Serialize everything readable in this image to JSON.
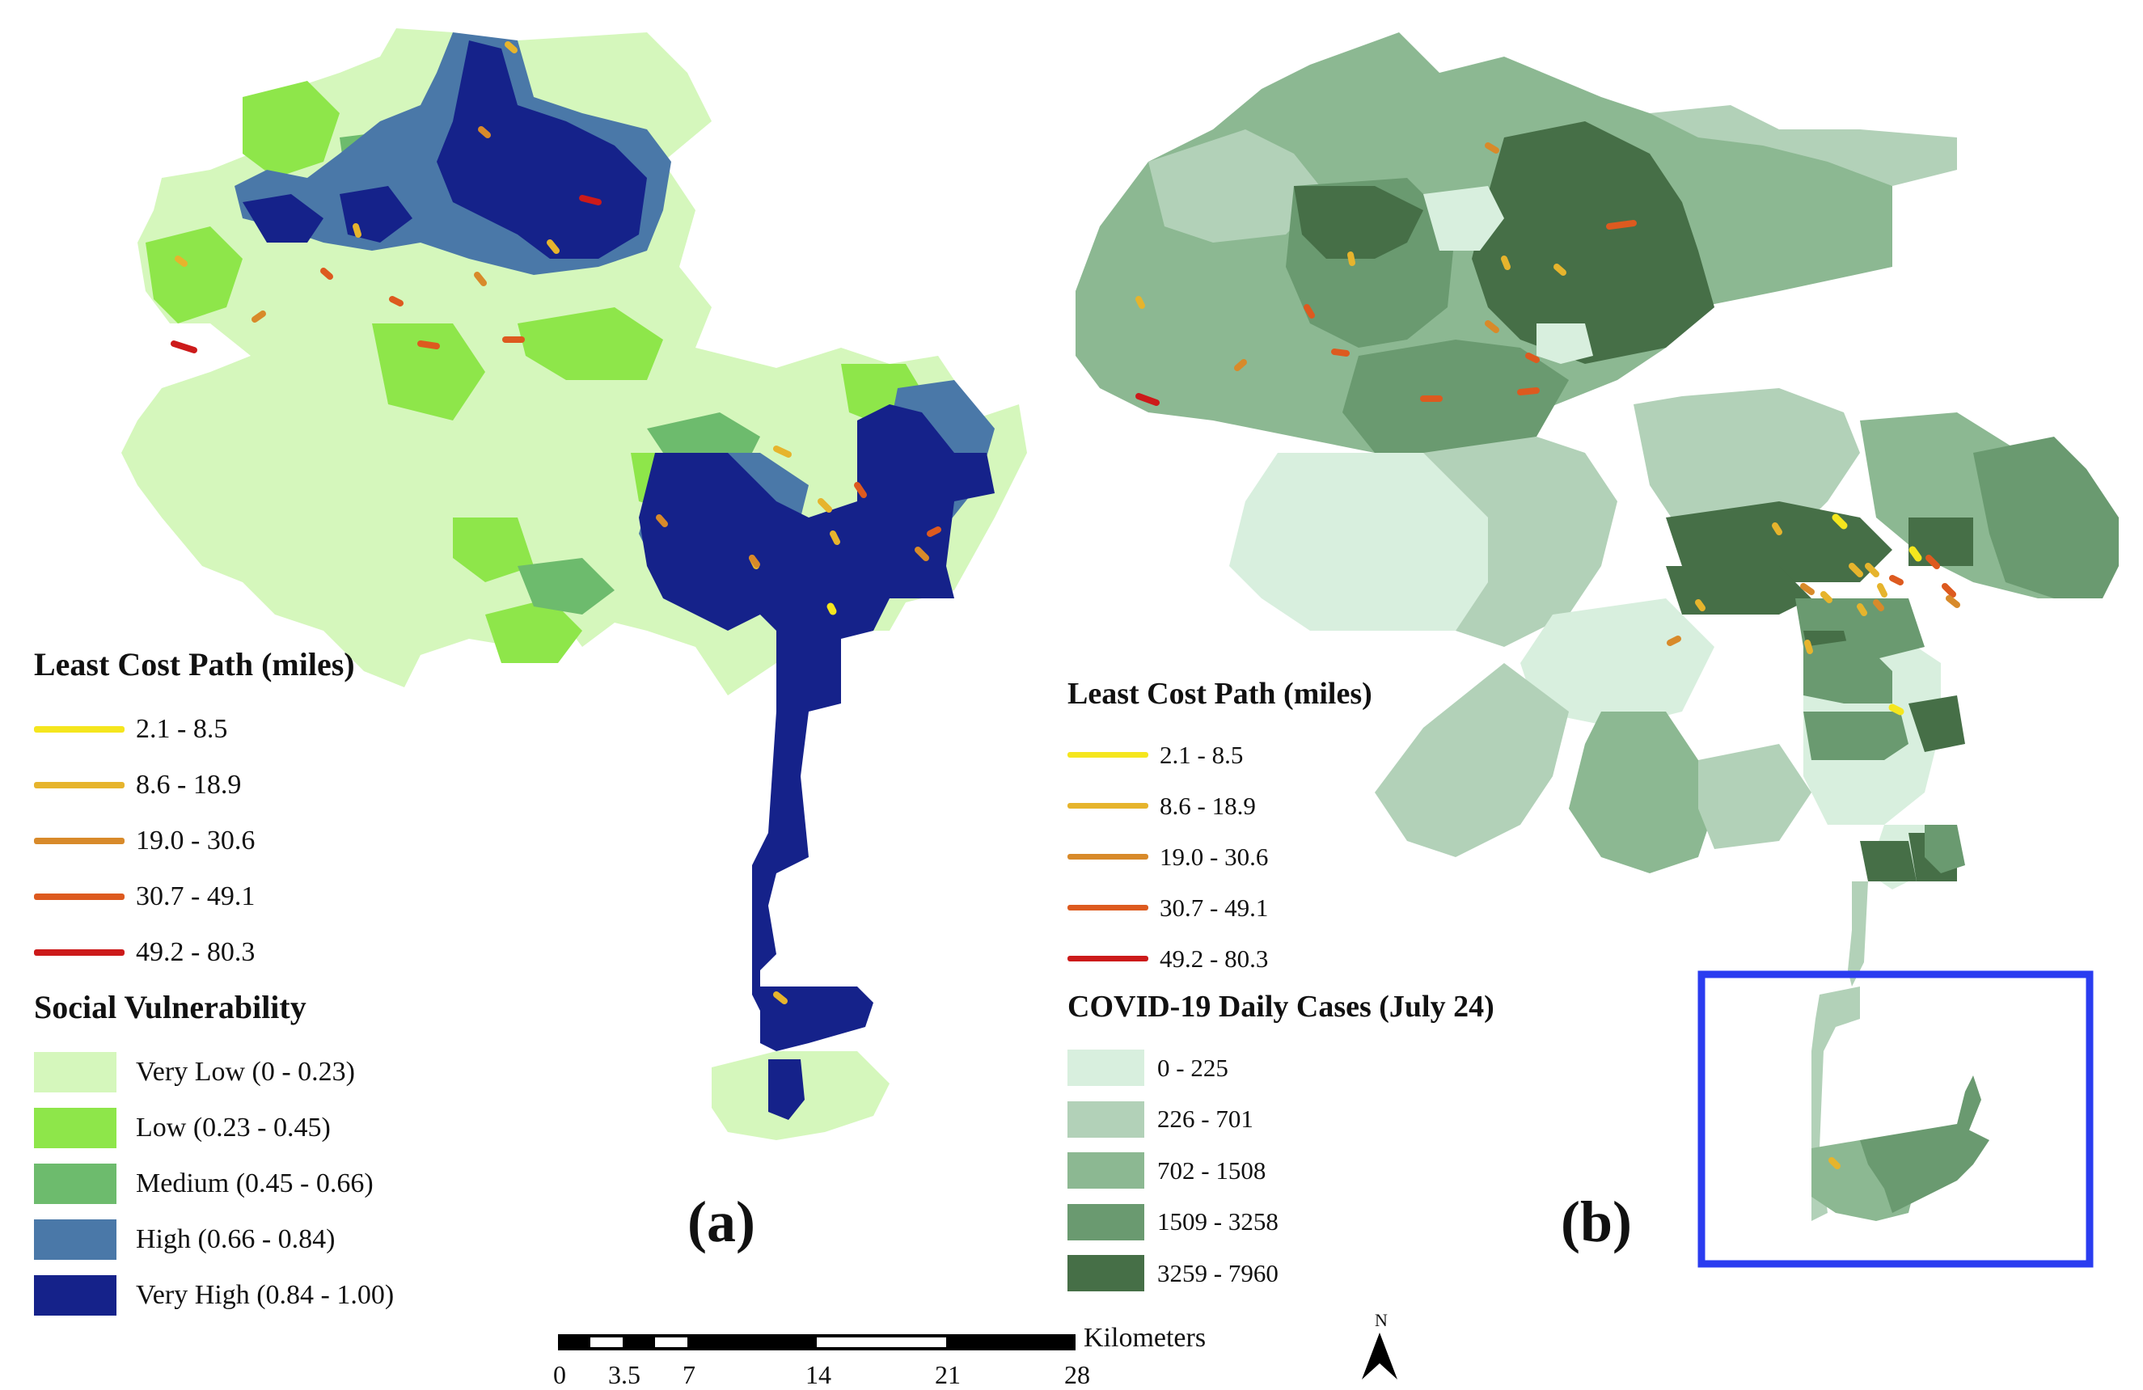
{
  "figure": {
    "panel_a_label": "(a)",
    "panel_b_label": "(b)"
  },
  "path_colors": [
    "#f5e61e",
    "#e6b42d",
    "#d88a2a",
    "#dd5a1f",
    "#cc1a1a"
  ],
  "legend_a": {
    "path_title": "Least Cost Path (miles)",
    "path_items": [
      {
        "label": "2.1 - 8.5",
        "color": "#f5e61e"
      },
      {
        "label": "8.6 - 18.9",
        "color": "#e6b42d"
      },
      {
        "label": "19.0 - 30.6",
        "color": "#d88a2a"
      },
      {
        "label": "30.7 - 49.1",
        "color": "#dd5a1f"
      },
      {
        "label": "49.2 - 80.3",
        "color": "#cc1a1a"
      }
    ],
    "vuln_title": "Social Vulnerability",
    "vuln_items": [
      {
        "label": "Very Low (0 - 0.23)",
        "color": "#d5f7bc"
      },
      {
        "label": "Low (0.23 - 0.45)",
        "color": "#8ee64a"
      },
      {
        "label": "Medium (0.45 - 0.66)",
        "color": "#6dbb6d"
      },
      {
        "label": "High (0.66 - 0.84)",
        "color": "#4a78a8"
      },
      {
        "label": "Very High (0.84 - 1.00)",
        "color": "#15228a"
      }
    ]
  },
  "legend_b": {
    "path_title": "Least Cost Path (miles)",
    "path_items": [
      {
        "label": "2.1 - 8.5",
        "color": "#f5e61e"
      },
      {
        "label": "8.6 - 18.9",
        "color": "#e6b42d"
      },
      {
        "label": "19.0 - 30.6",
        "color": "#d88a2a"
      },
      {
        "label": "30.7 - 49.1",
        "color": "#dd5a1f"
      },
      {
        "label": "49.2 - 80.3",
        "color": "#cc1a1a"
      }
    ],
    "cases_title": "COVID-19 Daily Cases (July 24)",
    "cases_items": [
      {
        "label": "0 - 225",
        "color": "#d8efde"
      },
      {
        "label": "226 - 701",
        "color": "#b2d1b8"
      },
      {
        "label": "702 - 1508",
        "color": "#8cb892"
      },
      {
        "label": "1509 - 3258",
        "color": "#6a9a70"
      },
      {
        "label": "3259 - 7960",
        "color": "#466f47"
      }
    ]
  },
  "scale_bar": {
    "unit": "Kilometers",
    "ticks": [
      "0",
      "3.5",
      "7",
      "14",
      "21",
      "28"
    ]
  },
  "north_arrow": {
    "label": "N"
  },
  "highlight_box_color": "#2a3cf0"
}
